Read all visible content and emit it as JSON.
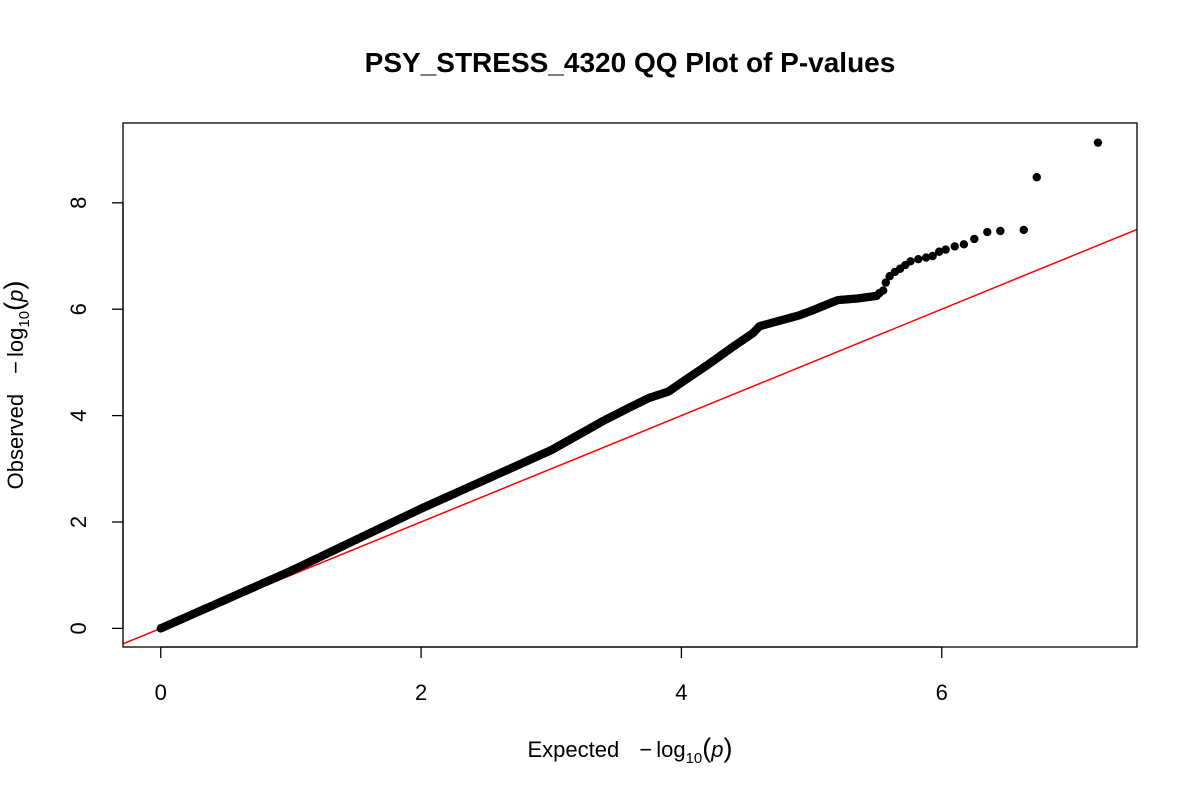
{
  "chart_data": {
    "type": "scatter",
    "title": "PSY_STRESS_4320 QQ Plot of P-values",
    "xlabel": {
      "prefix": "Expected",
      "minus": "−",
      "func": "log",
      "sub": "10",
      "open": "(",
      "var": "p",
      "close": ")"
    },
    "ylabel": {
      "prefix": "Observed",
      "minus": "−",
      "func": "log",
      "sub": "10",
      "open": "(",
      "var": "p",
      "close": ")"
    },
    "xlim": [
      -0.29,
      7.5
    ],
    "ylim": [
      -0.35,
      9.5
    ],
    "x_ticks": [
      0,
      2,
      4,
      6
    ],
    "y_ticks": [
      0,
      2,
      4,
      6,
      8
    ],
    "grid": false,
    "legend": "none",
    "point_color": "#000000",
    "reference_line": {
      "slope": 1,
      "intercept": 0,
      "color": "#ff0000"
    },
    "curve_anchors": [
      [
        0.0,
        0.0
      ],
      [
        1.0,
        1.08
      ],
      [
        2.0,
        2.25
      ],
      [
        3.0,
        3.35
      ],
      [
        3.4,
        3.9
      ],
      [
        3.6,
        4.15
      ],
      [
        3.75,
        4.33
      ],
      [
        3.9,
        4.45
      ],
      [
        4.0,
        4.62
      ],
      [
        4.2,
        4.95
      ],
      [
        4.4,
        5.3
      ],
      [
        4.55,
        5.55
      ],
      [
        4.6,
        5.68
      ],
      [
        4.75,
        5.78
      ],
      [
        4.9,
        5.88
      ],
      [
        5.0,
        5.97
      ],
      [
        5.1,
        6.07
      ],
      [
        5.2,
        6.17
      ],
      [
        5.35,
        6.2
      ],
      [
        5.5,
        6.25
      ]
    ],
    "extreme_points": [
      [
        5.52,
        6.3
      ],
      [
        5.55,
        6.35
      ],
      [
        5.57,
        6.5
      ],
      [
        5.6,
        6.62
      ],
      [
        5.64,
        6.7
      ],
      [
        5.68,
        6.76
      ],
      [
        5.72,
        6.83
      ],
      [
        5.76,
        6.9
      ],
      [
        5.82,
        6.94
      ],
      [
        5.88,
        6.97
      ],
      [
        5.93,
        7.0
      ],
      [
        5.98,
        7.08
      ],
      [
        6.03,
        7.12
      ],
      [
        6.1,
        7.18
      ],
      [
        6.17,
        7.22
      ],
      [
        6.25,
        7.32
      ],
      [
        6.35,
        7.45
      ],
      [
        6.45,
        7.47
      ],
      [
        6.63,
        7.49
      ],
      [
        6.73,
        8.48
      ],
      [
        7.2,
        9.13
      ]
    ],
    "curve_density": 520
  }
}
